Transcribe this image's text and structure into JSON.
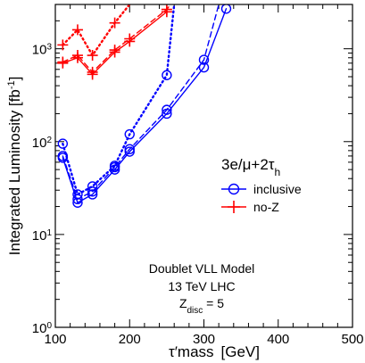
{
  "chart_data": {
    "type": "line",
    "xlabel_main": "τ′mass",
    "xlabel_unit": "[GeV]",
    "ylabel_main": "Integrated Luminosity [fb",
    "ylabel_sup": "-1",
    "ylabel_close": "]",
    "xlim": [
      100,
      500
    ],
    "ylim": [
      1,
      3000
    ],
    "yscale": "log",
    "x_ticks": [
      100,
      200,
      300,
      400,
      500
    ],
    "y_ticks": [
      {
        "value": 1,
        "base": "10",
        "exp": "0"
      },
      {
        "value": 10,
        "base": "10",
        "exp": "1"
      },
      {
        "value": 100,
        "base": "10",
        "exp": "2"
      },
      {
        "value": 1000,
        "base": "10",
        "exp": "3"
      }
    ],
    "legend": {
      "title_main": "3e/μ+2τ",
      "title_sub": "h",
      "entries": [
        "inclusive",
        "no-Z"
      ],
      "placement": "right"
    },
    "annotation": {
      "line1": "Doublet VLL Model",
      "line2": "13 TeV LHC",
      "line3_main": "Z",
      "line3_sub": "disc",
      "line3_tail": " = 5"
    },
    "colors": {
      "inclusive": "#0000ff",
      "noz": "#ff0000"
    },
    "series": [
      {
        "group": "inclusive",
        "style": "solid",
        "marker": "circle",
        "x": [
          110,
          130,
          150,
          180,
          200,
          250,
          300,
          330
        ],
        "y": [
          67,
          22,
          27,
          50,
          78,
          200,
          630,
          2700
        ]
      },
      {
        "group": "inclusive",
        "style": "dashed",
        "marker": "circle",
        "x": [
          110,
          130,
          150,
          180,
          200,
          250,
          300,
          320
        ],
        "y": [
          70,
          24,
          29,
          53,
          83,
          220,
          760,
          3000
        ]
      },
      {
        "group": "inclusive",
        "style": "dotted",
        "marker": "circle",
        "x": [
          110,
          130,
          150,
          180,
          200,
          250,
          260
        ],
        "y": [
          95,
          27,
          33,
          55,
          120,
          520,
          3000
        ]
      },
      {
        "group": "noz",
        "style": "solid",
        "marker": "plus",
        "x": [
          110,
          130,
          150,
          180,
          200,
          250
        ],
        "y": [
          700,
          800,
          530,
          920,
          1200,
          2500
        ]
      },
      {
        "group": "noz",
        "style": "dashed",
        "marker": "plus",
        "x": [
          110,
          130,
          150,
          180,
          200,
          250,
          255
        ],
        "y": [
          720,
          850,
          560,
          970,
          1280,
          2650,
          3000
        ]
      },
      {
        "group": "noz",
        "style": "dotted",
        "marker": "plus",
        "x": [
          110,
          130,
          150,
          180,
          200
        ],
        "y": [
          1100,
          1600,
          850,
          1900,
          3000
        ]
      }
    ]
  }
}
